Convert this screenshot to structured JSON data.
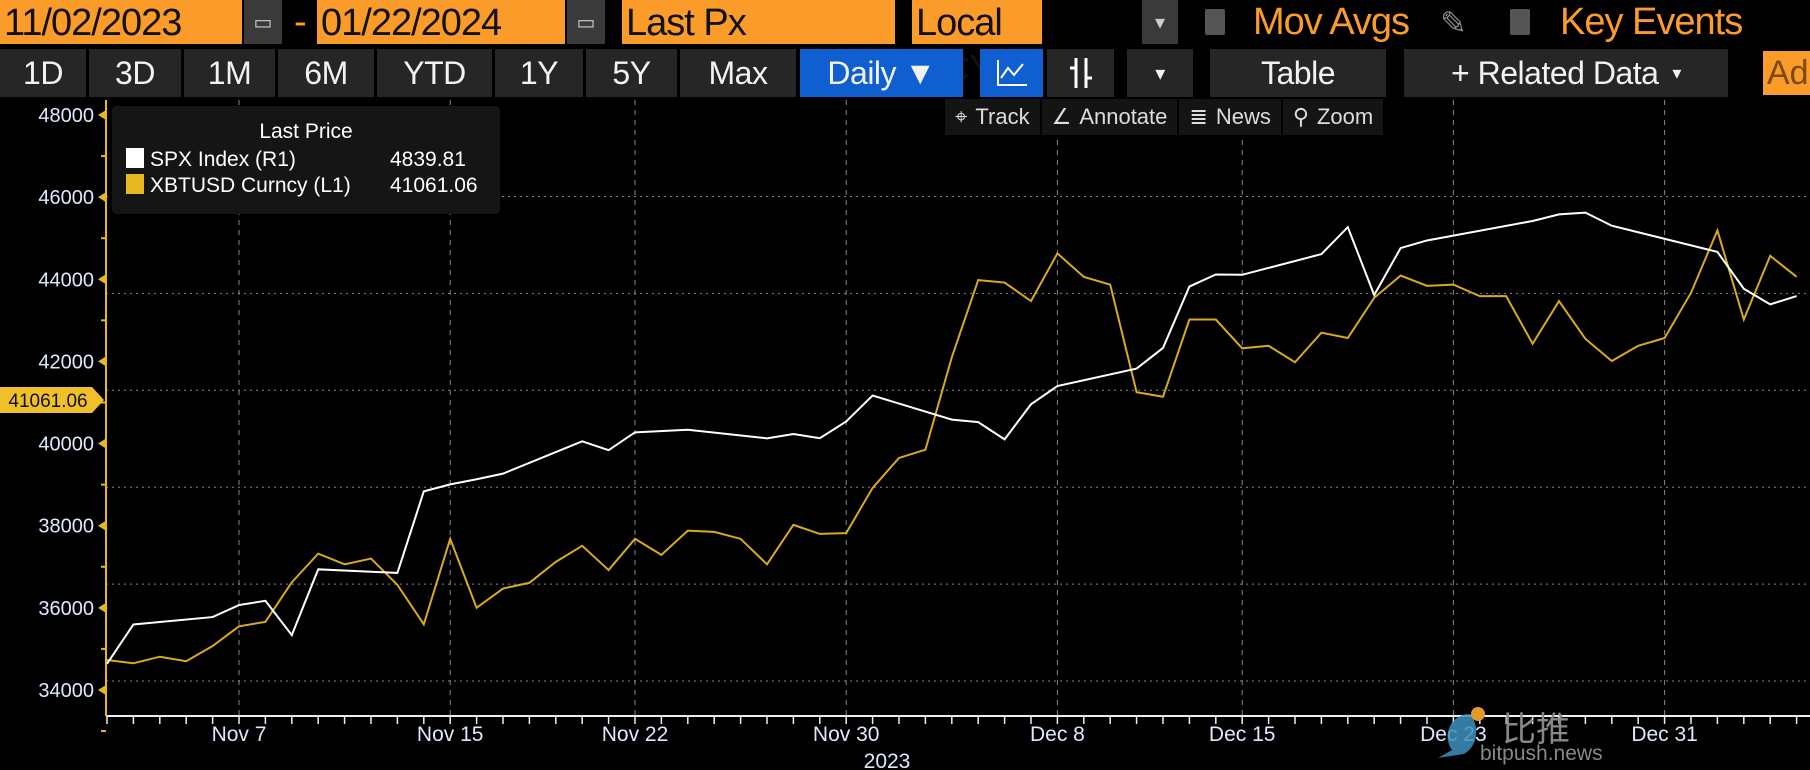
{
  "toolbar": {
    "start_date": "11/02/2023",
    "end_date": "01/22/2024",
    "date_separator": "-",
    "field": "Last Px",
    "currency": "Local CCY",
    "mov_avgs": "Mov Avgs",
    "key_events": "Key Events",
    "ranges": [
      "1D",
      "3D",
      "1M",
      "6M",
      "YTD",
      "1Y",
      "5Y",
      "Max"
    ],
    "frequency": "Daily ▼",
    "table": "Table",
    "related_data": "+ Related Data",
    "ad_label": "Ad"
  },
  "chart_tools": [
    "Track",
    "Annotate",
    "News",
    "Zoom"
  ],
  "legend": {
    "title": "Last Price",
    "items": [
      {
        "name": "SPX Index  (R1)",
        "value": "4839.81",
        "color": "#ffffff"
      },
      {
        "name": "XBTUSD Curncy  (L1)",
        "value": "41061.06",
        "color": "#e6b820"
      }
    ]
  },
  "watermark": {
    "text": "比推",
    "sub": "bitpush.news"
  },
  "chart_data": {
    "type": "line",
    "left_axis": {
      "ticks": [
        48000,
        46000,
        44000,
        42000,
        40000,
        38000,
        36000,
        34000
      ],
      "ylim": [
        33500,
        48400
      ],
      "color": "#e6b820"
    },
    "right_axis": {
      "shown": false,
      "gridlines": [
        4300,
        4400,
        4500,
        4600,
        4700,
        4800
      ]
    },
    "x_ticks": [
      {
        "label": "Nov 7",
        "date": "2023-11-07"
      },
      {
        "label": "Nov 15",
        "date": "2023-11-15"
      },
      {
        "label": "Nov 22",
        "date": "2023-11-22"
      },
      {
        "label": "Nov 30",
        "date": "2023-11-30"
      },
      {
        "label": "Dec 8",
        "date": "2023-12-08"
      },
      {
        "label": "Dec 15",
        "date": "2023-12-15"
      },
      {
        "label": "Dec 23",
        "date": "2023-12-23"
      },
      {
        "label": "Dec 31",
        "date": "2023-12-31"
      }
    ],
    "year_label": "2023",
    "xlim": [
      "2023-11-02",
      "2024-01-05"
    ],
    "last_value_tag": "41061.06",
    "grid": true,
    "series": [
      {
        "name": "XBTUSD Curncy (L1)",
        "axis": "left",
        "color": "#d9aa1e",
        "start": "2023-11-02",
        "step": "calendar-day",
        "values": [
          34730,
          34650,
          34810,
          34700,
          35070,
          35550,
          35660,
          36620,
          37320,
          37060,
          37200,
          36560,
          35600,
          37680,
          36000,
          36470,
          36610,
          37120,
          37510,
          36920,
          37680,
          37290,
          37880,
          37850,
          37680,
          37060,
          38020,
          37800,
          37820,
          38920,
          39650,
          39850,
          42100,
          43980,
          43920,
          43470,
          44630,
          44060,
          43870,
          41250,
          41140,
          43020,
          43020,
          42320,
          42380,
          41980,
          42700,
          42570,
          43550,
          44090,
          43840,
          43870,
          43590,
          43590,
          42430,
          43470,
          42550,
          42010,
          42380,
          42570,
          43670,
          45190,
          43020,
          44570,
          44060
        ]
      },
      {
        "name": "SPX Index (R1)",
        "axis": "right",
        "color": "#ffffff",
        "points": [
          [
            "2023-11-02",
            4317.78
          ],
          [
            "2023-11-03",
            4358.34
          ],
          [
            "2023-11-06",
            4365.98
          ],
          [
            "2023-11-07",
            4378.38
          ],
          [
            "2023-11-08",
            4382.78
          ],
          [
            "2023-11-09",
            4347.35
          ],
          [
            "2023-11-10",
            4415.24
          ],
          [
            "2023-11-13",
            4411.55
          ],
          [
            "2023-11-14",
            4495.7
          ],
          [
            "2023-11-15",
            4502.88
          ],
          [
            "2023-11-16",
            4508.24
          ],
          [
            "2023-11-17",
            4514.02
          ],
          [
            "2023-11-20",
            4547.38
          ],
          [
            "2023-11-21",
            4538.19
          ],
          [
            "2023-11-22",
            4556.62
          ],
          [
            "2023-11-24",
            4559.34
          ],
          [
            "2023-11-27",
            4550.43
          ],
          [
            "2023-11-28",
            4554.89
          ],
          [
            "2023-11-29",
            4550.58
          ],
          [
            "2023-11-30",
            4567.8
          ],
          [
            "2023-12-01",
            4594.63
          ],
          [
            "2023-12-04",
            4569.78
          ],
          [
            "2023-12-05",
            4567.18
          ],
          [
            "2023-12-06",
            4549.34
          ],
          [
            "2023-12-07",
            4585.59
          ],
          [
            "2023-12-08",
            4604.37
          ],
          [
            "2023-12-11",
            4622.44
          ],
          [
            "2023-12-12",
            4643.7
          ],
          [
            "2023-12-13",
            4707.09
          ],
          [
            "2023-12-14",
            4719.55
          ],
          [
            "2023-12-15",
            4719.19
          ],
          [
            "2023-12-18",
            4740.56
          ],
          [
            "2023-12-19",
            4768.37
          ],
          [
            "2023-12-20",
            4698.35
          ],
          [
            "2023-12-21",
            4746.75
          ],
          [
            "2023-12-22",
            4754.63
          ],
          [
            "2023-12-26",
            4774.75
          ],
          [
            "2023-12-27",
            4781.58
          ],
          [
            "2023-12-28",
            4783.35
          ],
          [
            "2023-12-29",
            4769.83
          ],
          [
            "2024-01-02",
            4742.83
          ],
          [
            "2024-01-03",
            4704.81
          ],
          [
            "2024-01-04",
            4688.68
          ],
          [
            "2024-01-05",
            4697.24
          ]
        ]
      }
    ]
  }
}
